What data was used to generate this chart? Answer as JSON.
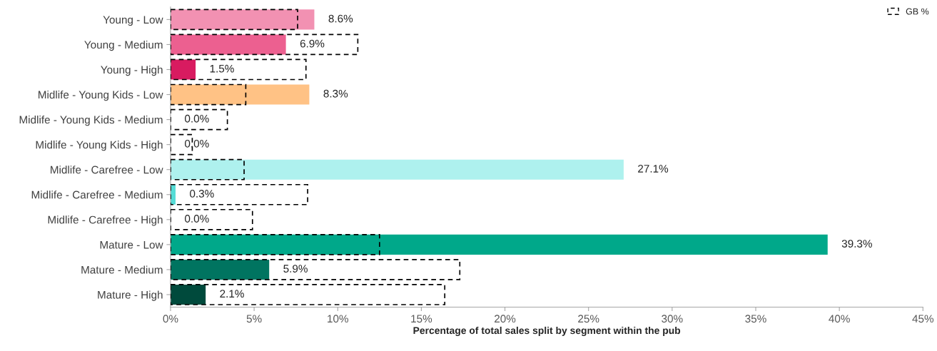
{
  "chart_data": {
    "type": "bar",
    "orientation": "horizontal",
    "categories": [
      "Young - Low",
      "Young - Medium",
      "Young - High",
      "Midlife - Young Kids - Low",
      "Midlife - Young Kids - Medium",
      "Midlife - Young Kids - High",
      "Midlife - Carefree - Low",
      "Midlife - Carefree - Medium",
      "Midlife - Carefree - High",
      "Mature - Low",
      "Mature - Medium",
      "Mature - High"
    ],
    "xlabel": "Percentage of total sales split by segment within the pub",
    "xlim": [
      0,
      45
    ],
    "xticks": [
      {
        "value": 0,
        "label": "0%"
      },
      {
        "value": 5,
        "label": "5%"
      },
      {
        "value": 10,
        "label": "10%"
      },
      {
        "value": 15,
        "label": "15%"
      },
      {
        "value": 20,
        "label": "20%"
      },
      {
        "value": 25,
        "label": "25%"
      },
      {
        "value": 30,
        "label": "30%"
      },
      {
        "value": 35,
        "label": "35%"
      },
      {
        "value": 40,
        "label": "40%"
      },
      {
        "value": 45,
        "label": "45%"
      }
    ],
    "grid": false,
    "legend": "top right",
    "series": [
      {
        "values": [
          8.6,
          6.9,
          1.5,
          8.3,
          0.0,
          0.0,
          27.1,
          0.3,
          0.0,
          39.3,
          5.9,
          2.1
        ],
        "colors": [
          "#f291b2",
          "#ec6090",
          "#d81b60",
          "#ffc285",
          "#ffc285",
          "#ffc285",
          "#aef1ee",
          "#55dcd6",
          "#1fbfb0",
          "#00a88a",
          "#007460",
          "#004a3c"
        ],
        "value_labels": [
          "8.6%",
          "6.9%",
          "1.5%",
          "8.3%",
          "0.0%",
          "0.0%",
          "27.1%",
          "0.3%",
          "0.0%",
          "39.3%",
          "5.9%",
          "2.1%"
        ]
      },
      {
        "name": "GB %",
        "color": "#000000",
        "line_style": "dashed",
        "values": [
          7.6,
          11.2,
          8.1,
          4.5,
          3.4,
          1.3,
          4.4,
          8.2,
          4.9,
          12.5,
          17.3,
          16.4
        ]
      }
    ]
  }
}
